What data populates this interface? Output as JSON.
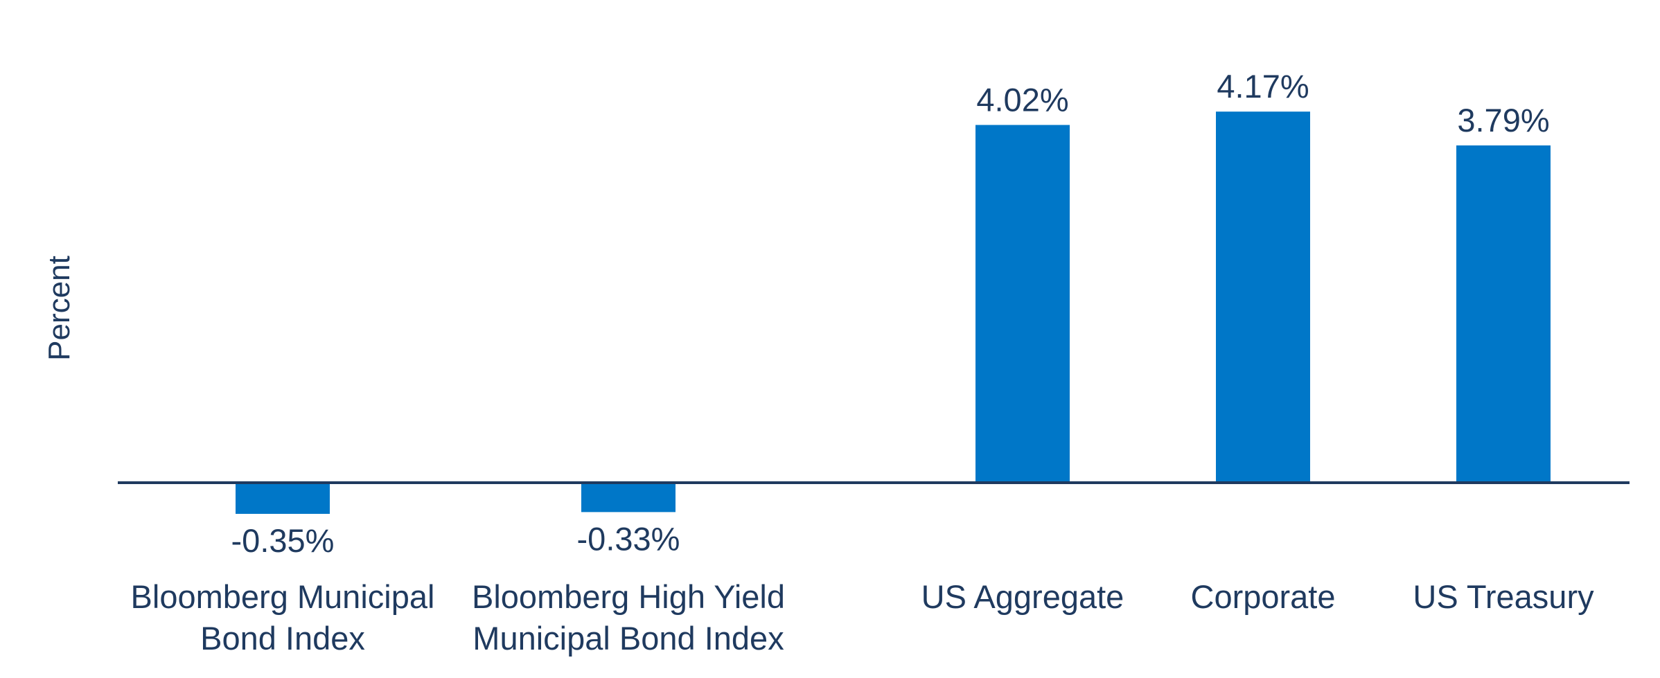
{
  "chart_data": {
    "type": "bar",
    "categories": [
      [
        "Bloomberg Municipal",
        "Bond Index"
      ],
      [
        "Bloomberg High Yield",
        "Municipal Bond Index"
      ],
      [
        "US Aggregate"
      ],
      [
        "Corporate"
      ],
      [
        "US Treasury"
      ]
    ],
    "values": [
      -0.35,
      -0.33,
      4.02,
      4.17,
      3.79
    ],
    "value_labels": [
      "-0.35%",
      "-0.33%",
      "4.02%",
      "4.17%",
      "3.79%"
    ],
    "title": "",
    "xlabel": "",
    "ylabel": "Percent",
    "grid": false,
    "legend": "none",
    "colors": {
      "bar": "#0077c8",
      "axis": "#1f3a5f",
      "text": "#1f3a5f"
    }
  }
}
